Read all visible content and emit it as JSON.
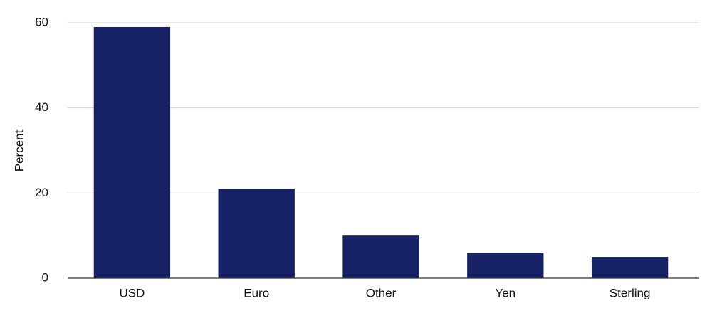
{
  "chart_data": {
    "type": "bar",
    "y_label": "Percent",
    "categories": [
      "USD",
      "Euro",
      "Other",
      "Yen",
      "Sterling"
    ],
    "values": [
      59,
      21,
      10,
      6,
      5
    ],
    "color": "#172266",
    "ylim": [
      0,
      60
    ],
    "yticks": [
      0,
      20,
      40,
      60
    ],
    "grid": true
  }
}
